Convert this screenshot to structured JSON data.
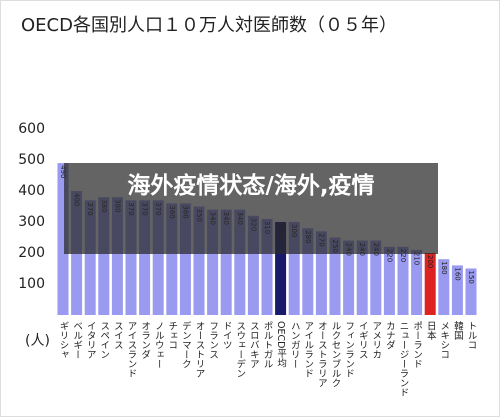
{
  "chart_data": {
    "type": "bar",
    "title": "OECD各国別人口１０万人対医師数（０５年）",
    "y_unit": "(人)",
    "overlay_caption": "海外疫情状态/海外,疫情",
    "categories": [
      "ギリシャ",
      "ベルギー",
      "イタリア",
      "スペイン",
      "スイス",
      "アイスランド",
      "オランダ",
      "ノルウェー",
      "チェコ",
      "デンマーク",
      "オーストリア",
      "フランス",
      "ドイツ",
      "スウェーデン",
      "スロバキア",
      "ポルトガル",
      "OECD平均",
      "ハンガリー",
      "アイルランド",
      "オーストラリア",
      "ルクセンブルク",
      "フィンランド",
      "イギリス",
      "アメリカ",
      "カナダ",
      "ニュージーランド",
      "ポーランド",
      "日本",
      "メキシコ",
      "韓国",
      "トルコ"
    ],
    "values": [
      490,
      400,
      370,
      380,
      380,
      370,
      370,
      370,
      360,
      360,
      350,
      340,
      340,
      340,
      320,
      310,
      300,
      300,
      280,
      270,
      250,
      240,
      240,
      240,
      220,
      220,
      210,
      200,
      180,
      160,
      150
    ],
    "colors": [
      "#9a9af0",
      "#9a9af0",
      "#9a9af0",
      "#9a9af0",
      "#9a9af0",
      "#9a9af0",
      "#9a9af0",
      "#9a9af0",
      "#9a9af0",
      "#9a9af0",
      "#9a9af0",
      "#9a9af0",
      "#9a9af0",
      "#9a9af0",
      "#9a9af0",
      "#9a9af0",
      "#1a1a6a",
      "#9a9af0",
      "#9a9af0",
      "#9a9af0",
      "#9a9af0",
      "#9a9af0",
      "#9a9af0",
      "#9a9af0",
      "#9a9af0",
      "#9a9af0",
      "#9a9af0",
      "#dd2222",
      "#9a9af0",
      "#9a9af0",
      "#9a9af0"
    ],
    "ylim": [
      0,
      600
    ],
    "yticks": [
      100,
      200,
      300,
      400,
      500,
      600
    ],
    "grid": false
  }
}
